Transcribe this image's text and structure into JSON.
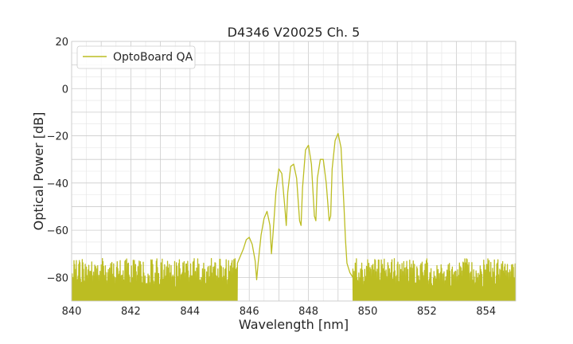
{
  "chart_data": {
    "type": "line",
    "title": "D4346 V20025 Ch. 5",
    "xlabel": "Wavelength [nm]",
    "ylabel": "Optical Power [dB]",
    "xlim": [
      840,
      855
    ],
    "ylim": [
      -90,
      20
    ],
    "xticks": [
      840,
      842,
      844,
      846,
      848,
      850,
      852,
      854
    ],
    "yticks": [
      -80,
      -60,
      -40,
      -20,
      0,
      20
    ],
    "ytick_labels": [
      "−80",
      "−60",
      "−40",
      "−20",
      "0",
      "20"
    ],
    "grid": true,
    "legend": {
      "placement": "upper-left"
    },
    "series": [
      {
        "name": "OptoBoard QA",
        "color": "#bcbd22",
        "x": [
          845.6,
          845.8,
          845.9,
          846.0,
          846.1,
          846.2,
          846.25,
          846.3,
          846.4,
          846.5,
          846.6,
          846.7,
          846.75,
          846.8,
          846.9,
          847.0,
          847.1,
          847.2,
          847.25,
          847.3,
          847.4,
          847.5,
          847.6,
          847.7,
          847.75,
          847.8,
          847.9,
          848.0,
          848.1,
          848.2,
          848.25,
          848.3,
          848.4,
          848.5,
          848.6,
          848.7,
          848.75,
          848.8,
          848.9,
          849.0,
          849.1,
          849.2,
          849.25,
          849.3,
          849.4,
          849.5
        ],
        "y": [
          -74,
          -68,
          -64,
          -63,
          -66,
          -73,
          -81,
          -74,
          -62,
          -55,
          -52,
          -58,
          -70,
          -62,
          -44,
          -34,
          -36,
          -50,
          -58,
          -44,
          -33,
          -32,
          -38,
          -56,
          -58,
          -42,
          -26,
          -24,
          -32,
          -54,
          -56,
          -38,
          -30,
          -30,
          -40,
          -56,
          -54,
          -34,
          -22,
          -19,
          -25,
          -50,
          -64,
          -74,
          -78,
          -80
        ]
      }
    ],
    "noise": {
      "ranges": [
        [
          840.0,
          845.6
        ],
        [
          849.5,
          855.0
        ]
      ],
      "floor": -90,
      "upper_envelope": -72
    }
  }
}
